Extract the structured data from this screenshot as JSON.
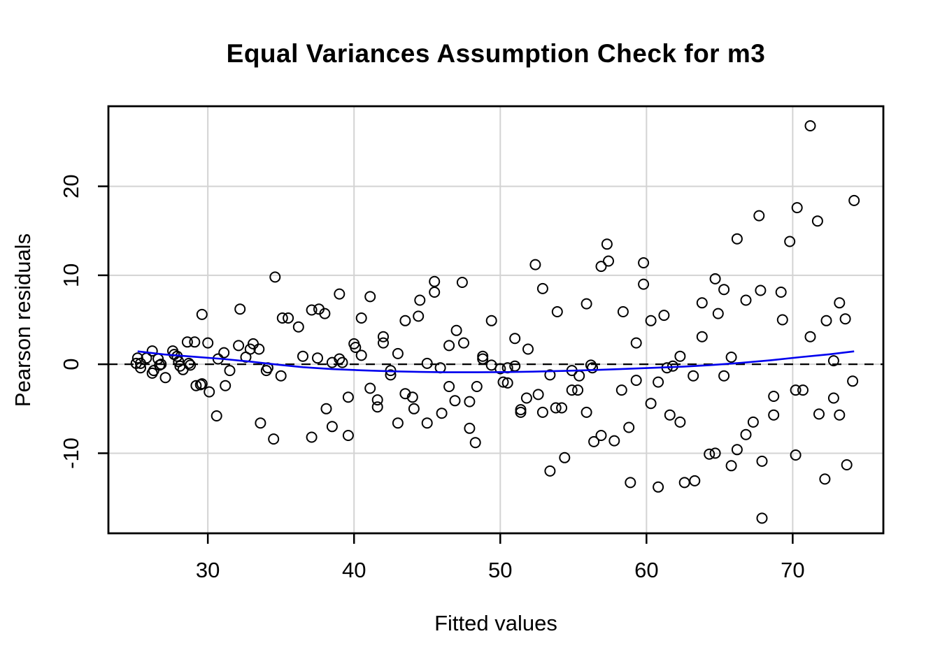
{
  "chart_data": {
    "type": "scatter",
    "title": "Equal Variances Assumption Check for m3",
    "xlabel": "Fitted values",
    "ylabel": "Pearson residuals",
    "x_ticks": [
      30,
      40,
      50,
      60,
      70
    ],
    "y_ticks": [
      -10,
      0,
      10,
      20
    ],
    "xlim": [
      23.2,
      76.2
    ],
    "ylim": [
      -19.0,
      29.0
    ],
    "grid": true,
    "legend_position": "none",
    "marker": "open-circle",
    "colors": {
      "points": "#000000",
      "smoother": "#0000EE",
      "grid": "#D3D3D3",
      "reference_line": "#000000",
      "box": "#000000",
      "background": "#FFFFFF"
    },
    "reference_line": {
      "y": 0,
      "style": "dashed"
    },
    "smoother": {
      "label": "loess smoother",
      "points": [
        [
          25.2,
          1.45
        ],
        [
          27,
          1.1
        ],
        [
          29,
          0.85
        ],
        [
          31,
          0.6
        ],
        [
          33,
          0.28
        ],
        [
          34,
          0.1
        ],
        [
          35,
          -0.08
        ],
        [
          36.5,
          -0.33
        ],
        [
          38.5,
          -0.55
        ],
        [
          40.5,
          -0.68
        ],
        [
          42.5,
          -0.79
        ],
        [
          44.5,
          -0.86
        ],
        [
          46.5,
          -0.9
        ],
        [
          48.5,
          -0.9
        ],
        [
          50.5,
          -0.88
        ],
        [
          52.5,
          -0.82
        ],
        [
          54.5,
          -0.74
        ],
        [
          56.5,
          -0.64
        ],
        [
          58.5,
          -0.52
        ],
        [
          60.5,
          -0.4
        ],
        [
          62.5,
          -0.27
        ],
        [
          64.5,
          -0.08
        ],
        [
          66.5,
          0.16
        ],
        [
          68.5,
          0.45
        ],
        [
          70.5,
          0.8
        ],
        [
          72.5,
          1.12
        ],
        [
          74.2,
          1.45
        ]
      ]
    },
    "points": [
      [
        25.2,
        0.7
      ],
      [
        25.1,
        0.1
      ],
      [
        25.4,
        0.1
      ],
      [
        25.4,
        -0.4
      ],
      [
        25.8,
        0.7
      ],
      [
        26.2,
        1.5
      ],
      [
        26.3,
        -0.7
      ],
      [
        26.7,
        -0.1
      ],
      [
        26.8,
        0.0
      ],
      [
        26.6,
        0.6
      ],
      [
        26.2,
        -1.0
      ],
      [
        27.1,
        -1.5
      ],
      [
        27.6,
        1.5
      ],
      [
        27.7,
        1.1
      ],
      [
        27.9,
        0.9
      ],
      [
        28.0,
        0.3
      ],
      [
        28.1,
        -0.2
      ],
      [
        28.3,
        -0.6
      ],
      [
        28.6,
        2.5
      ],
      [
        29.1,
        2.5
      ],
      [
        30.0,
        2.4
      ],
      [
        28.7,
        0.1
      ],
      [
        28.8,
        -0.1
      ],
      [
        29.5,
        -2.3
      ],
      [
        29.2,
        -2.4
      ],
      [
        29.6,
        -2.2
      ],
      [
        30.1,
        -3.1
      ],
      [
        31.1,
        1.3
      ],
      [
        30.7,
        0.6
      ],
      [
        31.5,
        -0.7
      ],
      [
        31.2,
        -2.4
      ],
      [
        32.1,
        2.1
      ],
      [
        32.6,
        0.8
      ],
      [
        32.9,
        1.7
      ],
      [
        33.1,
        2.3
      ],
      [
        33.5,
        1.7
      ],
      [
        34.1,
        -0.4
      ],
      [
        34.0,
        -0.7
      ],
      [
        35.0,
        -1.3
      ],
      [
        33.6,
        -6.6
      ],
      [
        34.5,
        -8.4
      ],
      [
        30.6,
        -5.8
      ],
      [
        36.2,
        4.2
      ],
      [
        29.6,
        5.6
      ],
      [
        32.2,
        6.2
      ],
      [
        34.6,
        9.8
      ],
      [
        35.1,
        5.2
      ],
      [
        35.5,
        5.2
      ],
      [
        37.1,
        6.1
      ],
      [
        37.6,
        6.2
      ],
      [
        38.0,
        5.7
      ],
      [
        39.0,
        7.9
      ],
      [
        41.1,
        7.6
      ],
      [
        40.5,
        5.2
      ],
      [
        43.5,
        4.9
      ],
      [
        44.4,
        5.4
      ],
      [
        44.5,
        7.2
      ],
      [
        45.5,
        9.3
      ],
      [
        45.5,
        8.1
      ],
      [
        47.4,
        9.2
      ],
      [
        49.4,
        4.9
      ],
      [
        36.5,
        0.9
      ],
      [
        37.5,
        0.7
      ],
      [
        38.5,
        0.2
      ],
      [
        39.0,
        0.6
      ],
      [
        39.2,
        0.2
      ],
      [
        40.0,
        2.3
      ],
      [
        40.1,
        1.9
      ],
      [
        40.5,
        1.0
      ],
      [
        42.0,
        3.1
      ],
      [
        42.0,
        2.4
      ],
      [
        43.0,
        1.2
      ],
      [
        42.5,
        -0.7
      ],
      [
        42.5,
        -1.2
      ],
      [
        45.0,
        0.1
      ],
      [
        45.9,
        -0.4
      ],
      [
        47.0,
        3.8
      ],
      [
        46.5,
        2.1
      ],
      [
        47.5,
        2.4
      ],
      [
        48.8,
        0.9
      ],
      [
        48.8,
        0.6
      ],
      [
        49.4,
        -0.1
      ],
      [
        41.1,
        -2.7
      ],
      [
        41.6,
        -4.0
      ],
      [
        41.6,
        -4.8
      ],
      [
        39.6,
        -3.7
      ],
      [
        38.1,
        -5.0
      ],
      [
        38.5,
        -7.0
      ],
      [
        37.1,
        -8.2
      ],
      [
        39.6,
        -8.0
      ],
      [
        43.5,
        -3.3
      ],
      [
        44.0,
        -3.7
      ],
      [
        44.1,
        -5.0
      ],
      [
        43.0,
        -6.6
      ],
      [
        45.0,
        -6.6
      ],
      [
        46.0,
        -5.5
      ],
      [
        46.5,
        -2.5
      ],
      [
        46.9,
        -4.1
      ],
      [
        47.9,
        -4.2
      ],
      [
        48.4,
        -2.5
      ],
      [
        47.9,
        -7.2
      ],
      [
        48.3,
        -8.8
      ],
      [
        52.4,
        11.2
      ],
      [
        57.3,
        13.5
      ],
      [
        56.9,
        11.0
      ],
      [
        57.4,
        11.6
      ],
      [
        59.8,
        11.4
      ],
      [
        52.9,
        8.5
      ],
      [
        59.8,
        9.0
      ],
      [
        55.9,
        6.8
      ],
      [
        53.9,
        5.9
      ],
      [
        58.4,
        5.9
      ],
      [
        60.3,
        4.9
      ],
      [
        61.2,
        5.5
      ],
      [
        51.0,
        2.9
      ],
      [
        51.9,
        1.7
      ],
      [
        59.3,
        2.4
      ],
      [
        62.3,
        0.9
      ],
      [
        61.4,
        -0.4
      ],
      [
        61.8,
        -0.2
      ],
      [
        50.0,
        -0.5
      ],
      [
        50.5,
        -0.4
      ],
      [
        51.0,
        -0.2
      ],
      [
        50.2,
        -2.0
      ],
      [
        50.5,
        -2.1
      ],
      [
        53.4,
        -1.2
      ],
      [
        54.9,
        -0.7
      ],
      [
        55.4,
        -1.3
      ],
      [
        56.3,
        -0.4
      ],
      [
        56.2,
        -0.1
      ],
      [
        55.3,
        -2.9
      ],
      [
        54.9,
        -2.9
      ],
      [
        51.8,
        -3.8
      ],
      [
        52.6,
        -3.4
      ],
      [
        51.4,
        -5.1
      ],
      [
        51.4,
        -5.4
      ],
      [
        52.9,
        -5.4
      ],
      [
        53.8,
        -4.9
      ],
      [
        54.2,
        -4.9
      ],
      [
        55.9,
        -5.4
      ],
      [
        59.3,
        -1.8
      ],
      [
        58.3,
        -2.9
      ],
      [
        58.8,
        -7.1
      ],
      [
        56.9,
        -8.0
      ],
      [
        56.4,
        -8.7
      ],
      [
        57.8,
        -8.6
      ],
      [
        54.4,
        -10.5
      ],
      [
        53.4,
        -12.0
      ],
      [
        58.9,
        -13.3
      ],
      [
        60.8,
        -13.8
      ],
      [
        62.6,
        -13.3
      ],
      [
        63.3,
        -13.1
      ],
      [
        60.3,
        -4.4
      ],
      [
        61.6,
        -5.7
      ],
      [
        62.3,
        -6.5
      ],
      [
        60.8,
        -2.0
      ],
      [
        71.2,
        26.8
      ],
      [
        74.2,
        18.4
      ],
      [
        70.3,
        17.6
      ],
      [
        67.7,
        16.7
      ],
      [
        71.7,
        16.1
      ],
      [
        66.2,
        14.1
      ],
      [
        69.8,
        13.8
      ],
      [
        64.7,
        9.6
      ],
      [
        65.3,
        8.4
      ],
      [
        67.8,
        8.3
      ],
      [
        69.2,
        8.1
      ],
      [
        63.8,
        6.9
      ],
      [
        66.8,
        7.2
      ],
      [
        64.9,
        5.7
      ],
      [
        73.2,
        6.9
      ],
      [
        69.3,
        5.0
      ],
      [
        72.3,
        4.9
      ],
      [
        73.6,
        5.1
      ],
      [
        63.8,
        3.1
      ],
      [
        71.2,
        3.1
      ],
      [
        65.8,
        0.8
      ],
      [
        72.8,
        0.4
      ],
      [
        65.3,
        -1.3
      ],
      [
        63.2,
        -1.3
      ],
      [
        74.1,
        -1.9
      ],
      [
        70.2,
        -2.9
      ],
      [
        70.7,
        -2.9
      ],
      [
        68.7,
        -3.6
      ],
      [
        72.8,
        -3.8
      ],
      [
        68.7,
        -5.7
      ],
      [
        71.8,
        -5.6
      ],
      [
        73.2,
        -5.7
      ],
      [
        67.3,
        -6.5
      ],
      [
        66.8,
        -7.9
      ],
      [
        66.2,
        -9.6
      ],
      [
        64.3,
        -10.1
      ],
      [
        64.7,
        -10.0
      ],
      [
        65.8,
        -11.4
      ],
      [
        67.9,
        -10.9
      ],
      [
        70.2,
        -10.2
      ],
      [
        73.7,
        -11.3
      ],
      [
        72.2,
        -12.9
      ],
      [
        67.9,
        -17.3
      ]
    ]
  }
}
